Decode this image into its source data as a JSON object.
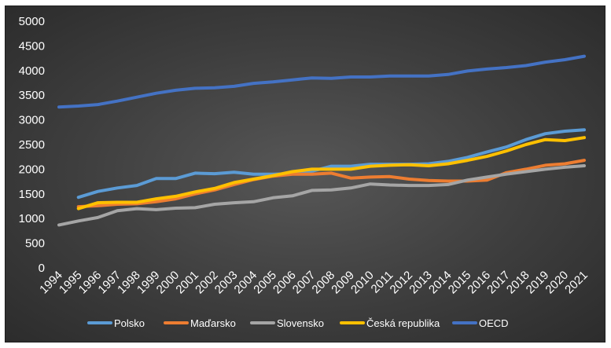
{
  "chart_data": {
    "type": "line",
    "title": "",
    "xlabel": "",
    "ylabel": "",
    "ylim": [
      0,
      5000
    ],
    "y_ticks": [
      0,
      500,
      1000,
      1500,
      2000,
      2500,
      3000,
      3500,
      4000,
      4500,
      5000
    ],
    "x_ticks": [
      "1994",
      "1995",
      "1996",
      "1997",
      "1998",
      "1999",
      "2000",
      "2001",
      "2002",
      "2003",
      "2004",
      "2005",
      "2006",
      "2007",
      "2008",
      "2009",
      "2010",
      "2011",
      "2012",
      "2013",
      "2014",
      "2015",
      "2016",
      "2017",
      "2018",
      "2019",
      "2020",
      "2021"
    ],
    "grid": false,
    "legend_position": "bottom",
    "series": [
      {
        "name": "Polsko",
        "color": "#5b9bd5",
        "x": [
          1995,
          1996,
          1997,
          1998,
          1999,
          2000,
          2001,
          2002,
          2003,
          2004,
          2005,
          2006,
          2007,
          2008,
          2009,
          2010,
          2011,
          2012,
          2013,
          2014,
          2015,
          2016,
          2017,
          2018,
          2019,
          2020,
          2021
        ],
        "values": [
          1430,
          1550,
          1620,
          1670,
          1810,
          1810,
          1920,
          1910,
          1940,
          1900,
          1900,
          1910,
          1960,
          2060,
          2060,
          2100,
          2100,
          2100,
          2110,
          2160,
          2240,
          2350,
          2450,
          2600,
          2720,
          2770,
          2800
        ]
      },
      {
        "name": "Maďarsko",
        "color": "#ed7d31",
        "x": [
          1995,
          1996,
          1997,
          1998,
          1999,
          2000,
          2001,
          2002,
          2003,
          2004,
          2005,
          2006,
          2007,
          2008,
          2009,
          2010,
          2011,
          2012,
          2013,
          2014,
          2015,
          2016,
          2017,
          2018,
          2019,
          2020,
          2021
        ],
        "values": [
          1240,
          1260,
          1290,
          1300,
          1340,
          1400,
          1500,
          1580,
          1690,
          1790,
          1860,
          1900,
          1900,
          1920,
          1820,
          1840,
          1850,
          1800,
          1770,
          1760,
          1760,
          1780,
          1930,
          2000,
          2080,
          2110,
          2180
        ]
      },
      {
        "name": "Slovensko",
        "color": "#a5a5a5",
        "x": [
          1994,
          1995,
          1996,
          1997,
          1998,
          1999,
          2000,
          2001,
          2002,
          2003,
          2004,
          2005,
          2006,
          2007,
          2008,
          2009,
          2010,
          2011,
          2012,
          2013,
          2014,
          2015,
          2016,
          2017,
          2018,
          2019,
          2020,
          2021
        ],
        "values": [
          870,
          950,
          1020,
          1160,
          1200,
          1180,
          1210,
          1220,
          1290,
          1320,
          1340,
          1420,
          1460,
          1570,
          1580,
          1620,
          1700,
          1680,
          1670,
          1670,
          1690,
          1780,
          1840,
          1900,
          1950,
          2000,
          2040,
          2070
        ]
      },
      {
        "name": "Česká republika",
        "color": "#ffc000",
        "x": [
          1995,
          1996,
          1997,
          1998,
          1999,
          2000,
          2001,
          2002,
          2003,
          2004,
          2005,
          2006,
          2007,
          2008,
          2009,
          2010,
          2011,
          2012,
          2013,
          2014,
          2015,
          2016,
          2017,
          2018,
          2019,
          2020,
          2021
        ],
        "values": [
          1200,
          1320,
          1330,
          1330,
          1400,
          1450,
          1540,
          1610,
          1730,
          1800,
          1870,
          1950,
          2000,
          2000,
          2000,
          2060,
          2080,
          2090,
          2070,
          2110,
          2180,
          2260,
          2370,
          2500,
          2600,
          2580,
          2640
        ]
      },
      {
        "name": "OECD",
        "color": "#4472c4",
        "x": [
          1994,
          1995,
          1996,
          1997,
          1998,
          1999,
          2000,
          2001,
          2002,
          2003,
          2004,
          2005,
          2006,
          2007,
          2008,
          2009,
          2010,
          2011,
          2012,
          2013,
          2014,
          2015,
          2016,
          2017,
          2018,
          2019,
          2020,
          2021
        ],
        "values": [
          3260,
          3280,
          3310,
          3380,
          3460,
          3540,
          3600,
          3640,
          3650,
          3680,
          3740,
          3770,
          3810,
          3850,
          3840,
          3870,
          3870,
          3890,
          3890,
          3890,
          3920,
          3990,
          4030,
          4060,
          4100,
          4170,
          4220,
          4290
        ]
      }
    ]
  }
}
